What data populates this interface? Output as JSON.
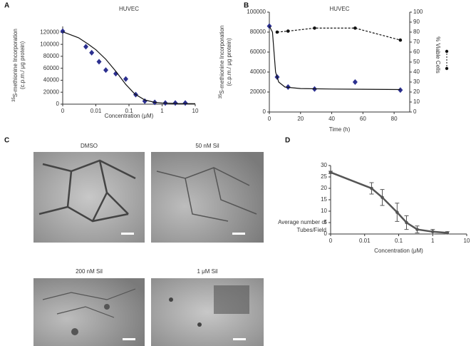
{
  "panels": {
    "letters": [
      "A",
      "B",
      "C",
      "D"
    ],
    "images": [
      "DMSO",
      "50 nM Sil",
      "200 nM Sil",
      "1 μM Sil"
    ]
  },
  "chart_data": [
    {
      "type": "scatter",
      "title": "HUVEC",
      "xlabel": "Concentration (μM)",
      "ylabel": [
        [
          {
            "text": "35",
            "sup": true
          },
          {
            "text": "S-methionine Incorporation"
          }
        ],
        [
          {
            "text": "(c.p.m./ μg protein)"
          }
        ]
      ],
      "ylabel_orientation": "vertical",
      "xscale": "log",
      "xlim": [
        0.001,
        10
      ],
      "xticks": [
        {
          "value": 0.001,
          "label": "0"
        },
        0.01,
        0.1,
        1,
        10
      ],
      "ylim": [
        0,
        130000
      ],
      "yticks": [
        0,
        20000,
        40000,
        60000,
        80000,
        100000,
        120000
      ],
      "series": [
        {
          "color": "#2b2f8f",
          "marker": "diamond",
          "x": [
            0.001,
            0.005,
            0.0075,
            0.0125,
            0.02,
            0.04,
            0.08,
            0.16,
            0.3,
            0.6,
            1.25,
            2.5,
            5
          ],
          "values": [
            122000,
            96000,
            86000,
            71000,
            57000,
            51000,
            42000,
            16000,
            5000,
            3000,
            2000,
            2000,
            2000
          ]
        },
        {
          "color": "#111111",
          "line": "solid",
          "x": [
            0.001,
            0.003,
            0.006,
            0.01,
            0.02,
            0.04,
            0.08,
            0.15,
            0.3,
            0.6,
            1,
            3,
            10
          ],
          "values": [
            121000,
            111000,
            100000,
            91000,
            75000,
            55000,
            33000,
            17000,
            7000,
            3000,
            2000,
            1000,
            800
          ]
        }
      ]
    },
    {
      "type": "scatter",
      "title": "HUVEC",
      "xlabel": "Time (h)",
      "ylabel": [
        [
          {
            "text": "35",
            "sup": true
          },
          {
            "text": "S-methionine Incorporation"
          }
        ],
        [
          {
            "text": "(c.p.m./ μg protein)"
          }
        ]
      ],
      "ylabel_orientation": "vertical",
      "y2label": "% Viable Cells",
      "xlim": [
        0,
        90
      ],
      "xticks": [
        0,
        20,
        40,
        60,
        80
      ],
      "ylim": [
        0,
        100000
      ],
      "yticks": [
        0,
        20000,
        40000,
        60000,
        80000,
        100000
      ],
      "y2lim": [
        0,
        100
      ],
      "y2ticks": [
        0,
        10,
        20,
        30,
        40,
        50,
        60,
        70,
        80,
        90,
        100
      ],
      "series": [
        {
          "color": "#2b2f8f",
          "marker": "diamond",
          "x": [
            0,
            5,
            12,
            29,
            55,
            84
          ],
          "values": [
            86000,
            35000,
            25000,
            23000,
            30000,
            22000
          ]
        },
        {
          "color": "#111111",
          "line": "solid",
          "x": [
            0,
            2,
            4,
            6,
            10,
            20,
            40,
            84
          ],
          "values": [
            86000,
            80000,
            40000,
            30000,
            25000,
            23500,
            23000,
            22500
          ]
        },
        {
          "color": "#111111",
          "marker": "circle",
          "line": "dashed",
          "axis": "y2",
          "x": [
            5,
            12,
            29,
            55,
            84
          ],
          "values": [
            80,
            81,
            84,
            84,
            72
          ]
        }
      ]
    },
    {
      "type": "scatter",
      "xlabel": "Concentration (μM)",
      "ylabel": [
        [
          {
            "text": "Average number of"
          }
        ],
        [
          {
            "text": "Tubes/Field"
          }
        ]
      ],
      "ylabel_orientation": "horizontal",
      "xscale": "log",
      "xlim": [
        0.001,
        10
      ],
      "xticks": [
        {
          "value": 0.001,
          "label": "0"
        },
        0.01,
        0.1,
        1,
        10
      ],
      "ylim": [
        0,
        30
      ],
      "yticks": [
        0,
        5,
        10,
        15,
        20,
        25,
        30
      ],
      "series": [
        {
          "color": "#555555",
          "marker": "circle",
          "line": "thick",
          "x": [
            0.001,
            0.016,
            0.033,
            0.09,
            0.17,
            0.35,
            1,
            2.7
          ],
          "values": [
            27,
            20,
            16,
            9.5,
            5,
            2,
            1,
            0.5
          ],
          "errors": [
            0.5,
            2.5,
            3.5,
            4,
            3,
            1.5,
            1,
            0.5
          ]
        }
      ]
    }
  ]
}
